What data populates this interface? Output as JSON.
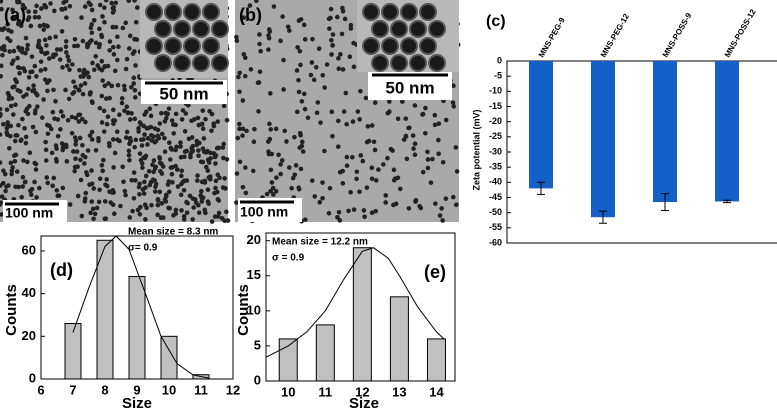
{
  "images": [
    {
      "label": "(a)",
      "inset_scale": "50 nm",
      "scale": "100 nm"
    },
    {
      "label": "(b)",
      "inset_scale": "50 nm",
      "scale": "100 nm"
    }
  ],
  "chart_data": [
    {
      "type": "bar",
      "annotations": [
        "(c)"
      ],
      "y_label": "Zeta potential (mV)",
      "categories": [
        "MNS-PEG-9",
        "MNS-PEG-12",
        "MNS-POSS-9",
        "MNS-POSS-12"
      ],
      "values": [
        -42,
        -51.5,
        -46.5,
        -46.3
      ],
      "errors": [
        2,
        2,
        2.8,
        0.4
      ],
      "color": "#1560c8",
      "ylim": [
        -60,
        0
      ],
      "yticks": [
        0,
        -5,
        -10,
        -15,
        -20,
        -25,
        -30,
        -35,
        -40,
        -45,
        -50,
        -55,
        -60
      ]
    },
    {
      "type": "bar",
      "annotations": [
        "Mean size = 8.3 nm",
        "σ= 0.9",
        "(d)"
      ],
      "x_label": "Size",
      "y_label": "Counts",
      "x": [
        7,
        8,
        9,
        10,
        11
      ],
      "values": [
        26,
        65,
        48,
        20,
        2
      ],
      "color": "#c0c0c0",
      "xlim": [
        6,
        12
      ],
      "xticks": [
        6,
        7,
        8,
        9,
        10,
        11,
        12
      ],
      "ylim": [
        0,
        67
      ],
      "yticks": [
        0,
        20,
        40,
        60
      ],
      "fit": {
        "x": [
          7,
          7.5,
          8,
          8.35,
          8.75,
          9.25,
          9.75,
          10.25,
          10.75,
          11.25
        ],
        "y": [
          21.8,
          42.9,
          62.1,
          67,
          60.7,
          40.6,
          20,
          7.2,
          1.9,
          0.4
        ]
      }
    },
    {
      "type": "bar",
      "annotations": [
        "Mean size = 12.2 nm",
        "σ = 0.9",
        "(e)"
      ],
      "x_label": "Size",
      "y_label": "Counts",
      "x": [
        10,
        11,
        12,
        13,
        14
      ],
      "values": [
        6,
        8,
        19,
        12,
        6
      ],
      "color": "#c0c0c0",
      "xlim": [
        9.4,
        14.5
      ],
      "xticks": [
        10,
        11,
        12,
        13,
        14
      ],
      "ylim": [
        0,
        21.1
      ],
      "yticks": [
        0,
        5,
        10,
        15,
        20
      ],
      "fit": {
        "x": [
          9.4,
          10,
          10.5,
          11,
          11.5,
          12,
          12.3,
          12.7,
          13,
          13.5,
          14,
          14.2
        ],
        "y": [
          3.4,
          5,
          7,
          10,
          14.5,
          18.5,
          19,
          17.5,
          15,
          10.5,
          7,
          6
        ]
      }
    }
  ]
}
